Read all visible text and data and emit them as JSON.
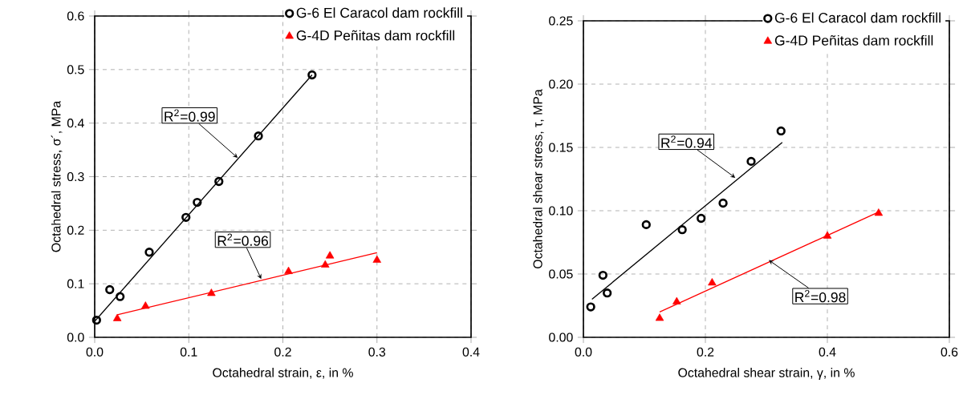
{
  "chart_data": [
    {
      "type": "scatter",
      "xlabel": "Octahedral strain, ε, in %",
      "ylabel": "Octahedral stress, σ´, MPa",
      "xlim": [
        0,
        0.4
      ],
      "ylim": [
        0,
        0.6
      ],
      "xticks": [
        {
          "value": 0,
          "label": "0.0"
        },
        0.1,
        0.2,
        0.3,
        0.4
      ],
      "yticks": [
        {
          "value": 0,
          "label": "0.0"
        },
        0.1,
        0.2,
        0.3,
        0.4,
        0.5,
        0.6
      ],
      "grid": true,
      "legend": "top right",
      "series": [
        {
          "name": "G-6  El Caracol dam rockfill",
          "color": "#000000",
          "marker": "circle",
          "x": [
            0.002,
            0.016,
            0.027,
            0.058,
            0.097,
            0.109,
            0.132,
            0.174,
            0.231
          ],
          "values": [
            0.032,
            0.089,
            0.076,
            0.159,
            0.224,
            0.252,
            0.291,
            0.376,
            0.49
          ]
        },
        {
          "name": "G-4D  Peñitas dam rockfill",
          "color": "#ff0000",
          "marker": "triangle",
          "x": [
            0.024,
            0.054,
            0.124,
            0.206,
            0.245,
            0.25,
            0.3
          ],
          "values": [
            0.035,
            0.058,
            0.082,
            0.123,
            0.135,
            0.152,
            0.144
          ]
        },
        {
          "type": "line",
          "color": "#000000",
          "marker": "none",
          "x": [
            0.0,
            0.231
          ],
          "values": [
            0.03,
            0.49
          ]
        },
        {
          "type": "line",
          "color": "#ff0000",
          "marker": "none",
          "x": [
            0.024,
            0.3
          ],
          "values": [
            0.042,
            0.158
          ]
        }
      ],
      "annotations": [
        {
          "text": "R$^{2}$=0.99",
          "x": 0.152,
          "y": 0.335
        },
        {
          "text": "R$^{2}$=0.96",
          "x": 0.177,
          "y": 0.109
        }
      ]
    },
    {
      "type": "scatter",
      "xlabel": "Octahedral shear strain, γ, in %",
      "ylabel": "Octahedral shear stress, τ, MPa",
      "xlim": [
        0,
        0.6
      ],
      "ylim": [
        0,
        0.25
      ],
      "xticks": [
        {
          "value": 0,
          "label": "0.0"
        },
        0.2,
        0.4,
        0.6
      ],
      "yticks": [
        {
          "value": 0,
          "label": "0.00"
        },
        0.05,
        {
          "value": 0.1,
          "label": "0.10"
        },
        0.15,
        {
          "value": 0.2,
          "label": "0.20"
        },
        0.25
      ],
      "grid": true,
      "legend": "top right",
      "series": [
        {
          "name": "G-6  El Caracol dam rockfill",
          "color": "#000000",
          "marker": "circle",
          "x": [
            0.012,
            0.032,
            0.039,
            0.103,
            0.162,
            0.193,
            0.229,
            0.275,
            0.324
          ],
          "values": [
            0.024,
            0.049,
            0.035,
            0.089,
            0.085,
            0.094,
            0.106,
            0.139,
            0.163
          ]
        },
        {
          "name": "G-4D   Peñitas dam rockfill",
          "color": "#ff0000",
          "marker": "triangle",
          "x": [
            0.125,
            0.153,
            0.211,
            0.4,
            0.484
          ],
          "values": [
            0.015,
            0.028,
            0.043,
            0.08,
            0.098
          ]
        },
        {
          "type": "line",
          "color": "#000000",
          "marker": "none",
          "x": [
            0.014,
            0.326
          ],
          "values": [
            0.03,
            0.154
          ]
        },
        {
          "type": "line",
          "color": "#ff0000",
          "marker": "none",
          "x": [
            0.125,
            0.484
          ],
          "values": [
            0.02,
            0.099
          ]
        }
      ],
      "annotations": [
        {
          "text": "R$^{2}$=0.94",
          "x": 0.249,
          "y": 0.126
        },
        {
          "text": "R$^{2}$=0.98",
          "x": 0.304,
          "y": 0.061
        }
      ]
    }
  ]
}
